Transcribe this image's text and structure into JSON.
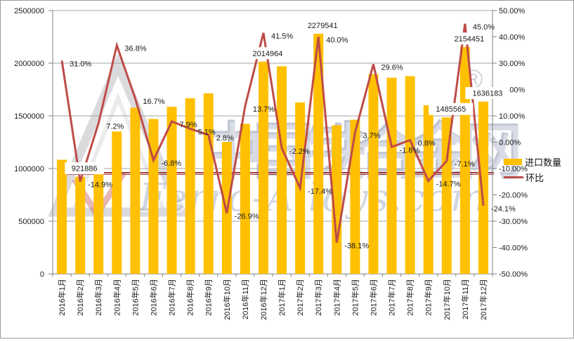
{
  "watermark": {
    "cn_text": "中国铁合金网",
    "en_text": "Ferro-Alloys.com",
    "reg_mark": "®"
  },
  "legend": {
    "items": [
      {
        "label": "进口数量",
        "type": "bar",
        "color": "#FFC000"
      },
      {
        "label": "环比",
        "type": "line",
        "color": "#BE4B48"
      }
    ]
  },
  "chart_data": {
    "type": "bar",
    "subtype": "bar+line combo, dual axis",
    "grid": "horizontal gridlines at left-axis steps",
    "legend_position": "right",
    "categories": [
      "2016年1月",
      "2016年2月",
      "2016年3月",
      "2016年4月",
      "2016年5月",
      "2016年6月",
      "2016年7月",
      "2016年8月",
      "2016年9月",
      "2016年10月",
      "2016年11月",
      "2016年12月",
      "2017年1月",
      "2017年2月",
      "2017年3月",
      "2017年4月",
      "2017年5月",
      "2017年6月",
      "2017年7月",
      "2017年8月",
      "2017年9月",
      "2017年10月",
      "2017年11月",
      "2017年12月"
    ],
    "series": [
      {
        "name": "进口数量",
        "type": "bar",
        "axis": "left",
        "color": "#FFC000",
        "values": [
          1083297,
          921886,
          988262,
          1351942,
          1577716,
          1470431,
          1586595,
          1667511,
          1714201,
          1253081,
          1424753,
          2014964,
          1970635,
          1627745,
          2279541,
          1411036,
          1463244,
          1896364,
          1862229,
          1877127,
          1601189,
          1485565,
          2154451,
          1636183
        ],
        "point_labels": {
          "1": "921886",
          "11": "2014964",
          "14": "2279541",
          "21": "1485565",
          "22": "2154451",
          "23": "1636183"
        }
      },
      {
        "name": "环比",
        "type": "line",
        "axis": "right",
        "color": "#BE4B48",
        "values": [
          31.0,
          -14.9,
          7.2,
          36.8,
          16.7,
          -6.8,
          7.9,
          5.1,
          2.8,
          -26.9,
          13.7,
          41.5,
          -2.2,
          -17.4,
          40.0,
          -38.1,
          3.7,
          29.6,
          -1.8,
          0.8,
          -14.7,
          -7.1,
          45.0,
          -24.1
        ],
        "point_labels": [
          "31.0%",
          "-14.9%",
          "7.2%",
          "36.8%",
          "16.7%",
          "-6.8%",
          "7.9%",
          "5.1%",
          "2.8%",
          "-26.9%",
          "13.7%",
          "41.5%",
          "-2.2%",
          "-17.4%",
          "40.0%",
          "-38.1%",
          "3.7%",
          "29.6%",
          "-1.8%",
          "0.8%",
          "-14.7%",
          "-7.1%",
          "45.0%",
          "-24.1%"
        ]
      }
    ],
    "left_axis": {
      "min": 0,
      "max": 2500000,
      "step": 500000,
      "labels": [
        "0",
        "500000",
        "1000000",
        "1500000",
        "2000000",
        "2500000"
      ]
    },
    "right_axis": {
      "min": -50,
      "max": 50,
      "step": 10,
      "labels": [
        "50.00%",
        "40.00%",
        "30.00%",
        "20.00%",
        "10.00%",
        "0.00%",
        "-10.00%",
        "-20.00%",
        "-30.00%",
        "-40.00%",
        "-50.00%"
      ]
    },
    "colors": {
      "bar": "#FFC000",
      "line": "#BE4B48",
      "gridline": "#a6a6a6",
      "axis": "#808080",
      "text": "#1a1a1a",
      "label_box_bg": "#ffffff"
    }
  }
}
